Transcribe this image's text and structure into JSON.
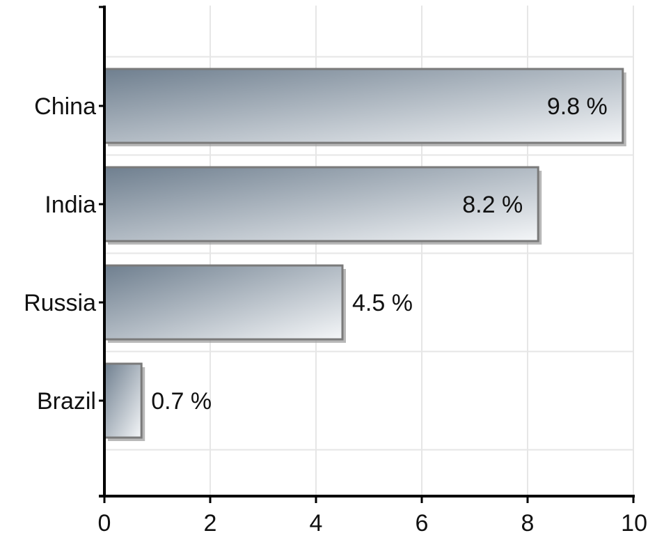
{
  "chart_data": {
    "type": "bar",
    "orientation": "horizontal",
    "categories": [
      "China",
      "India",
      "Russia",
      "Brazil"
    ],
    "values": [
      9.8,
      8.2,
      4.5,
      0.7
    ],
    "data_labels": [
      "9.8 %",
      "8.2 %",
      "4.5 %",
      "0.7 %"
    ],
    "title": "",
    "xlabel": "",
    "ylabel": "",
    "xlim": [
      0,
      10
    ],
    "xticks": [
      0,
      2,
      4,
      6,
      8,
      10
    ],
    "xtick_labels": [
      "0",
      "2",
      "4",
      "6",
      "8",
      "10"
    ],
    "grid": true,
    "legend": "none",
    "bar_gradient": [
      "#6f7f8f",
      "#f4f6f8"
    ],
    "bar_border": "#7a7a7a",
    "axis_color": "#000000",
    "grid_color": "#e6e6e6"
  }
}
